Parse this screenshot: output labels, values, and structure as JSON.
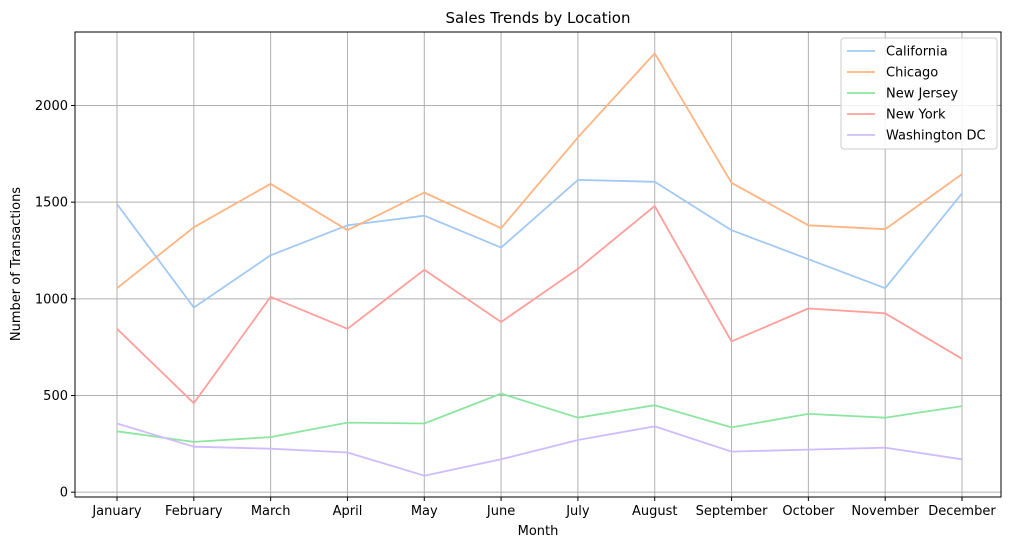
{
  "chart_data": {
    "type": "line",
    "title": "Sales Trends by Location",
    "xlabel": "Month",
    "ylabel": "Number of Transactions",
    "ylim": [
      -25,
      2380
    ],
    "yticks": [
      0,
      500,
      1000,
      1500,
      2000
    ],
    "grid": true,
    "legend_position": "top-right",
    "categories": [
      "January",
      "February",
      "March",
      "April",
      "May",
      "June",
      "July",
      "August",
      "September",
      "October",
      "November",
      "December"
    ],
    "series": [
      {
        "name": "California",
        "color": "#a1c9f4",
        "values": [
          1490,
          955,
          1225,
          1380,
          1430,
          1265,
          1615,
          1605,
          1355,
          1205,
          1055,
          1545
        ]
      },
      {
        "name": "Chicago",
        "color": "#ffb482",
        "values": [
          1055,
          1370,
          1595,
          1355,
          1550,
          1365,
          1835,
          2270,
          1600,
          1380,
          1360,
          1645
        ]
      },
      {
        "name": "New Jersey",
        "color": "#8de5a1",
        "values": [
          315,
          260,
          285,
          360,
          355,
          510,
          385,
          450,
          335,
          405,
          385,
          445
        ]
      },
      {
        "name": "New York",
        "color": "#ff9f9b",
        "values": [
          845,
          460,
          1010,
          845,
          1150,
          880,
          1155,
          1480,
          780,
          950,
          925,
          690
        ]
      },
      {
        "name": "Washington DC",
        "color": "#d0bbff",
        "values": [
          355,
          235,
          225,
          205,
          85,
          170,
          270,
          340,
          210,
          220,
          230,
          170
        ]
      }
    ]
  }
}
